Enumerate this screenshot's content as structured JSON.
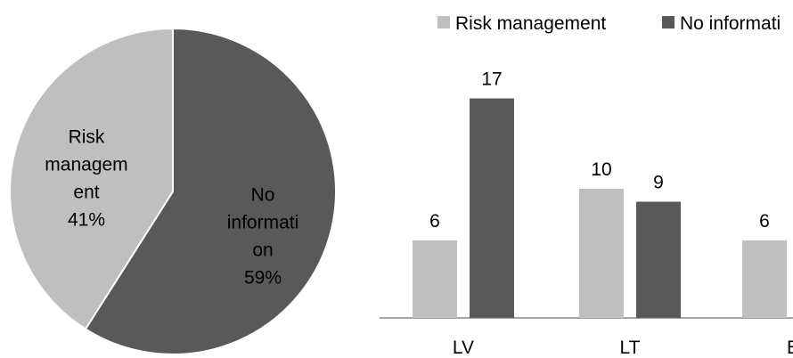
{
  "chart_data": [
    {
      "type": "pie",
      "slices": [
        {
          "label_lines": [
            "No",
            "informati",
            "on",
            "59%"
          ],
          "value": 59,
          "color": "#595959"
        },
        {
          "label_lines": [
            "Risk",
            "managem",
            "ent",
            "41%"
          ],
          "value": 41,
          "color": "#bfbfbf"
        }
      ]
    },
    {
      "type": "bar",
      "categories": [
        "LV",
        "LT",
        "E"
      ],
      "ylim": [
        0,
        20
      ],
      "grid": false,
      "legend": "top",
      "series": [
        {
          "name": "Risk management",
          "color": "#bfbfbf",
          "values": [
            6,
            10,
            6
          ],
          "value_labels": [
            "6",
            "10",
            "6"
          ]
        },
        {
          "name": "No informati",
          "color": "#595959",
          "values": [
            17,
            9,
            null
          ],
          "value_labels": [
            "17",
            "9",
            ""
          ]
        }
      ]
    }
  ]
}
